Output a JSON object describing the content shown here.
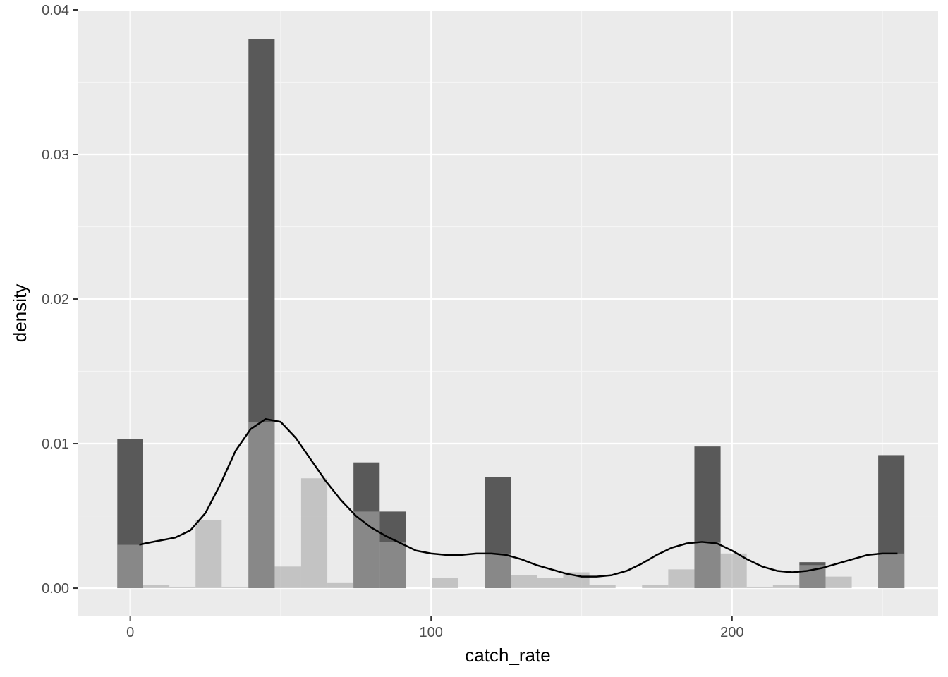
{
  "chart_data": {
    "type": "bar",
    "title": "",
    "xlabel": "catch_rate",
    "ylabel": "density",
    "xlim": [
      -17.5,
      268.5
    ],
    "ylim": [
      -0.0019,
      0.04
    ],
    "x_ticks": [
      0,
      100,
      200
    ],
    "x_tick_labels": [
      "0",
      "100",
      "200"
    ],
    "y_ticks": [
      0,
      0.01,
      0.02,
      0.03,
      0.04
    ],
    "y_tick_labels": [
      "0.00",
      "0.01",
      "0.02",
      "0.03",
      "0.04"
    ],
    "grid": true,
    "bin_width": 8.7,
    "series": [
      {
        "kind": "histogram",
        "color": "#595959",
        "bars": [
          {
            "x0": -4.3,
            "x1": 4.3,
            "value": 0.0103
          },
          {
            "x0": 39.3,
            "x1": 48.0,
            "value": 0.038
          },
          {
            "x0": 74.2,
            "x1": 82.9,
            "value": 0.0087
          },
          {
            "x0": 82.9,
            "x1": 91.6,
            "value": 0.0053
          },
          {
            "x0": 117.8,
            "x1": 126.5,
            "value": 0.0077
          },
          {
            "x0": 187.5,
            "x1": 196.2,
            "value": 0.0098
          },
          {
            "x0": 222.4,
            "x1": 231.1,
            "value": 0.0018
          },
          {
            "x0": 248.6,
            "x1": 257.3,
            "value": 0.0092
          }
        ]
      },
      {
        "kind": "histogram",
        "color": "#a8a8a8",
        "opacity": 0.6,
        "bars": [
          {
            "x0": -4.3,
            "x1": 4.3,
            "value": 0.003
          },
          {
            "x0": 4.3,
            "x1": 13.0,
            "value": 0.0002
          },
          {
            "x0": 13.0,
            "x1": 21.7,
            "value": 0.0001
          },
          {
            "x0": 21.7,
            "x1": 30.4,
            "value": 0.0047
          },
          {
            "x0": 30.4,
            "x1": 39.3,
            "value": 0.0001
          },
          {
            "x0": 39.3,
            "x1": 48.0,
            "value": 0.0115
          },
          {
            "x0": 48.0,
            "x1": 56.8,
            "value": 0.0015
          },
          {
            "x0": 56.8,
            "x1": 65.5,
            "value": 0.0076
          },
          {
            "x0": 65.5,
            "x1": 74.2,
            "value": 0.0004
          },
          {
            "x0": 74.2,
            "x1": 82.9,
            "value": 0.0053
          },
          {
            "x0": 82.9,
            "x1": 91.6,
            "value": 0.0032
          },
          {
            "x0": 100.3,
            "x1": 109.0,
            "value": 0.0007
          },
          {
            "x0": 117.8,
            "x1": 126.5,
            "value": 0.0024
          },
          {
            "x0": 126.5,
            "x1": 135.2,
            "value": 0.0009
          },
          {
            "x0": 135.2,
            "x1": 143.9,
            "value": 0.0007
          },
          {
            "x0": 143.9,
            "x1": 152.6,
            "value": 0.0011
          },
          {
            "x0": 152.6,
            "x1": 161.3,
            "value": 0.0002
          },
          {
            "x0": 170.1,
            "x1": 178.8,
            "value": 0.0002
          },
          {
            "x0": 178.8,
            "x1": 187.5,
            "value": 0.0013
          },
          {
            "x0": 187.5,
            "x1": 196.2,
            "value": 0.0032
          },
          {
            "x0": 196.2,
            "x1": 204.9,
            "value": 0.0024
          },
          {
            "x0": 204.9,
            "x1": 213.6,
            "value": 0.0001
          },
          {
            "x0": 213.6,
            "x1": 222.4,
            "value": 0.0002
          },
          {
            "x0": 222.4,
            "x1": 231.1,
            "value": 0.0016
          },
          {
            "x0": 231.1,
            "x1": 239.8,
            "value": 0.0008
          },
          {
            "x0": 248.6,
            "x1": 257.3,
            "value": 0.0024
          }
        ]
      },
      {
        "kind": "line",
        "color": "#000000",
        "x": [
          3,
          5,
          10,
          15,
          20,
          25,
          30,
          35,
          40,
          45,
          50,
          55,
          60,
          65,
          70,
          75,
          80,
          85,
          90,
          95,
          100,
          105,
          110,
          115,
          120,
          125,
          130,
          135,
          140,
          145,
          150,
          155,
          160,
          165,
          170,
          175,
          180,
          185,
          190,
          195,
          200,
          205,
          210,
          215,
          220,
          225,
          230,
          235,
          240,
          245,
          250,
          255
        ],
        "y": [
          0.003,
          0.0031,
          0.0033,
          0.0035,
          0.004,
          0.0052,
          0.0072,
          0.0095,
          0.011,
          0.0117,
          0.0115,
          0.0104,
          0.0089,
          0.0074,
          0.0061,
          0.005,
          0.0042,
          0.0036,
          0.0031,
          0.0026,
          0.0024,
          0.0023,
          0.0023,
          0.0024,
          0.0024,
          0.0023,
          0.002,
          0.0016,
          0.0013,
          0.001,
          0.0008,
          0.0008,
          0.0009,
          0.0012,
          0.0017,
          0.0023,
          0.0028,
          0.0031,
          0.0032,
          0.0031,
          0.0026,
          0.002,
          0.0015,
          0.0012,
          0.0011,
          0.0012,
          0.0014,
          0.0017,
          0.002,
          0.0023,
          0.0024,
          0.0024
        ]
      }
    ]
  },
  "colors": {
    "panel_background": "#ebebeb",
    "grid_major": "#ffffff",
    "grid_minor": "#f5f5f5"
  }
}
